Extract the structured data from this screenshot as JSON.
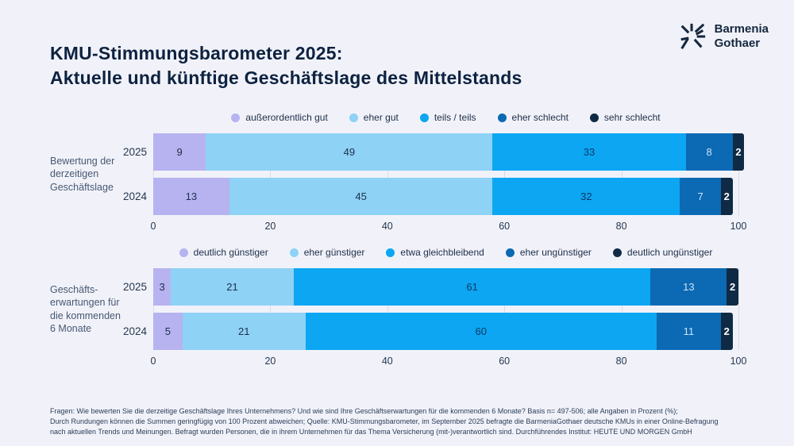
{
  "page": {
    "title_line1": "KMU-Stimmungsbarometer 2025:",
    "title_line2": "Aktuelle und künftige Geschäftslage des Mittelstands",
    "background": "#f1f2f9"
  },
  "brand": {
    "name_line1": "Barmenia",
    "name_line2": "Gothaer",
    "icon": "starburst-icon",
    "color": "#14273e"
  },
  "palette": [
    "#b7b2f0",
    "#8ed2f6",
    "#0ca6f2",
    "#0c69b4",
    "#0f2a44"
  ],
  "segment_label_colors": [
    "#1e2f4d",
    "#1e2f4d",
    "#0d3a66",
    "#c9e4f9",
    "#ffffff"
  ],
  "gridline_color": "#d8dbe7",
  "chart_data": [
    {
      "type": "bar",
      "stacked": true,
      "orientation": "horizontal",
      "group_label_lines": [
        "Bewertung der",
        "derzeitigen",
        "Geschäftslage"
      ],
      "legend": [
        "außerordentlich gut",
        "eher gut",
        "teils / teils",
        "eher schlecht",
        "sehr schlecht"
      ],
      "categories": [
        "2025",
        "2024"
      ],
      "series": [
        {
          "name": "außerordentlich gut",
          "values": [
            9,
            13
          ]
        },
        {
          "name": "eher gut",
          "values": [
            49,
            45
          ]
        },
        {
          "name": "teils / teils",
          "values": [
            33,
            32
          ]
        },
        {
          "name": "eher schlecht",
          "values": [
            8,
            7
          ]
        },
        {
          "name": "sehr schlecht",
          "values": [
            2,
            2
          ]
        }
      ],
      "rows": [
        [
          9,
          49,
          33,
          8,
          2
        ],
        [
          13,
          45,
          32,
          7,
          2
        ]
      ],
      "axis_ticks": [
        0,
        20,
        40,
        60,
        80,
        100
      ],
      "xlim": [
        0,
        100
      ],
      "grid": true,
      "legend_position": "top-center"
    },
    {
      "type": "bar",
      "stacked": true,
      "orientation": "horizontal",
      "group_label_lines": [
        "Geschäfts-",
        "erwartungen für",
        "die kommenden",
        "6 Monate"
      ],
      "legend": [
        "deutlich günstiger",
        "eher günstiger",
        "etwa gleichbleibend",
        "eher ungünstiger",
        "deutlich ungünstiger"
      ],
      "categories": [
        "2025",
        "2024"
      ],
      "series": [
        {
          "name": "deutlich günstiger",
          "values": [
            3,
            5
          ]
        },
        {
          "name": "eher günstiger",
          "values": [
            21,
            21
          ]
        },
        {
          "name": "etwa gleichbleibend",
          "values": [
            61,
            60
          ]
        },
        {
          "name": "eher ungünstiger",
          "values": [
            13,
            11
          ]
        },
        {
          "name": "deutlich ungünstiger",
          "values": [
            2,
            2
          ]
        }
      ],
      "rows": [
        [
          3,
          21,
          61,
          13,
          2
        ],
        [
          5,
          21,
          60,
          11,
          2
        ]
      ],
      "axis_ticks": [
        0,
        20,
        40,
        60,
        80,
        100
      ],
      "xlim": [
        0,
        100
      ],
      "grid": true,
      "legend_position": "top-center"
    }
  ],
  "footer": {
    "line1": "Fragen: Wie bewerten Sie die derzeitige Geschäftslage Ihres Unternehmens? Und wie sind Ihre Geschäftserwartungen für die kommenden 6 Monate? Basis n= 497-506;  alle Angaben in Prozent (%);",
    "line2": "Durch Rundungen können die Summen geringfügig von 100 Prozent abweichen; Quelle: KMU-Stimmungsbarometer, im September 2025 befragte die BarmeniaGothaer deutsche KMUs in einer Online-Befragung",
    "line3": "nach aktuellen Trends und Meinungen. Befragt wurden Personen, die in ihrem Unternehmen für das Thema Versicherung (mit-)verantwortlich sind. Durchführendes Institut: HEUTE UND MORGEN GmbH"
  }
}
